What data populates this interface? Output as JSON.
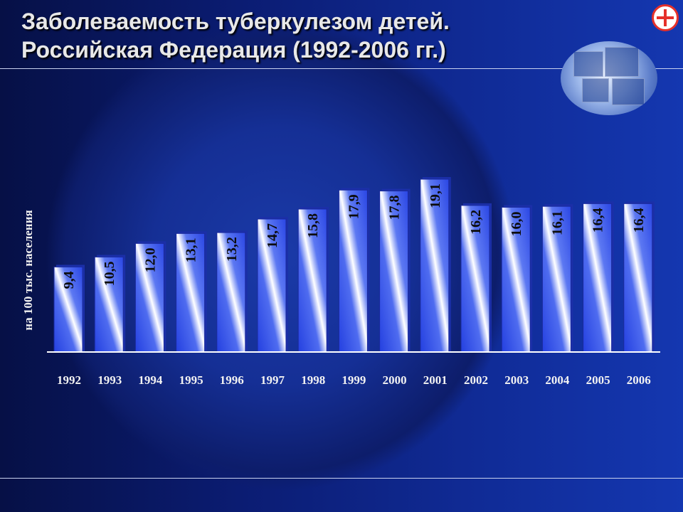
{
  "title": {
    "line1": "Заболеваемость туберкулезом  детей.",
    "line2": " Российская Федерация (1992-2006 гг.)"
  },
  "colors": {
    "background": "#0a1250",
    "bar_fill": "#2e4fe6",
    "bar_highlight": "#ffffff",
    "bar_edge": "#1b2fa8",
    "axis": "#ffffff",
    "text": "#f0f0f0"
  },
  "icons": {
    "logo": "medical-cross-logo-icon",
    "globe": "globe-collage-icon"
  },
  "chart_data": {
    "type": "bar",
    "title": "Заболеваемость туберкулезом  детей. Российская Федерация (1992-2006 гг.)",
    "ylabel": "на 100 тыс. населения",
    "xlabel": "",
    "categories": [
      "1992",
      "1993",
      "1994",
      "1995",
      "1996",
      "1997",
      "1998",
      "1999",
      "2000",
      "2001",
      "2002",
      "2003",
      "2004",
      "2005",
      "2006"
    ],
    "values": [
      9.4,
      10.5,
      12.0,
      13.1,
      13.2,
      14.7,
      15.8,
      17.9,
      17.8,
      19.1,
      16.2,
      16.0,
      16.1,
      16.4,
      16.4
    ],
    "value_labels": [
      "9,4",
      "10,5",
      "12,0",
      "13,1",
      "13,2",
      "14,7",
      "15,8",
      "17,9",
      "17,8",
      "19,1",
      "16,2",
      "16,0",
      "16,1",
      "16,4",
      "16,4"
    ],
    "ylim": [
      0,
      19.1
    ],
    "grid": false,
    "legend": "none"
  }
}
